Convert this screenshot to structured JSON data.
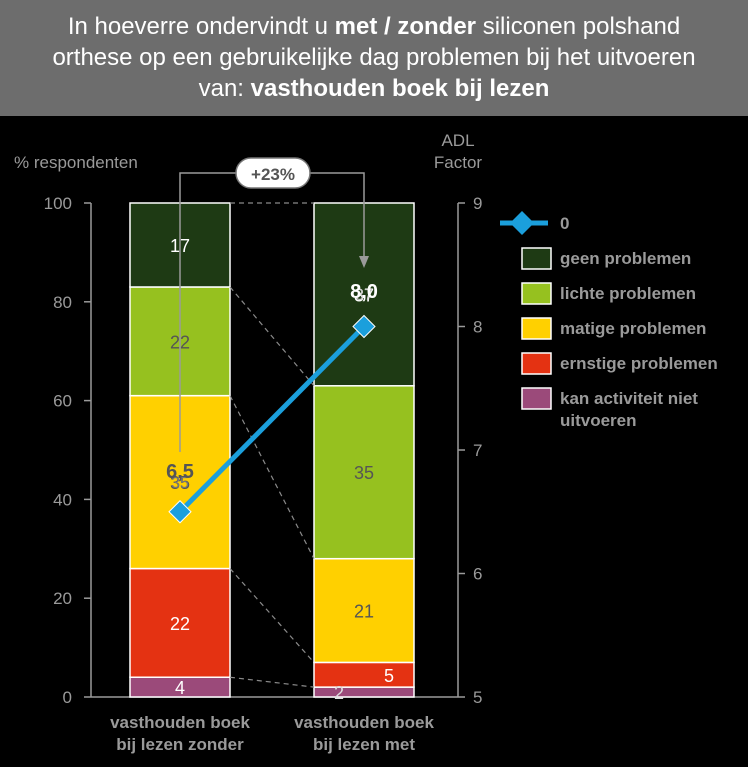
{
  "title": {
    "line1_a": "In hoeverre ondervindt u ",
    "line1_b": "met / zonder",
    "line1_c": " siliconen polshand",
    "line2": "orthese op een gebruikelijke dag problemen bij het uitvoeren",
    "line3_a": "van: ",
    "line3_b": "vasthouden boek bij lezen"
  },
  "chart_data": {
    "type": "bar",
    "stacked": true,
    "title": "In hoeverre ondervindt u met / zonder siliconen polshand orthese op een gebruikelijke dag problemen bij het uitvoeren van: vasthouden boek bij lezen",
    "ylabel": "% respondenten",
    "y2label_line1": "ADL",
    "y2label_line2": "Factor",
    "ylim": [
      0,
      100
    ],
    "y2lim": [
      5,
      9
    ],
    "yticks": [
      0,
      20,
      40,
      60,
      80,
      100
    ],
    "y2ticks": [
      5,
      6,
      7,
      8,
      9
    ],
    "categories": [
      [
        "vasthouden boek",
        "bij lezen zonder"
      ],
      [
        "vasthouden boek",
        "bij lezen met"
      ]
    ],
    "series": [
      {
        "name": "kan activiteit niet uitvoeren",
        "legend_lines": [
          "kan activiteit niet",
          "uitvoeren"
        ],
        "color": "#9b4a7a",
        "values": [
          4,
          2
        ]
      },
      {
        "name": "ernstige problemen",
        "legend_lines": [
          "ernstige problemen"
        ],
        "color": "#e43212",
        "values": [
          22,
          5
        ]
      },
      {
        "name": "matige problemen",
        "legend_lines": [
          "matige problemen"
        ],
        "color": "#ffd000",
        "values": [
          35,
          21
        ]
      },
      {
        "name": "lichte problemen",
        "legend_lines": [
          "lichte problemen"
        ],
        "color": "#96c11f",
        "values": [
          22,
          35
        ]
      },
      {
        "name": "geen problemen",
        "legend_lines": [
          "geen problemen"
        ],
        "color": "#1e3a14",
        "values": [
          17,
          37
        ]
      }
    ],
    "line_series": {
      "name": "0",
      "color": "#1b9fdc",
      "values": [
        6.5,
        8.0
      ],
      "labels": [
        "6,5",
        "8,0"
      ]
    },
    "hidden_labels": [
      "35",
      "37"
    ],
    "annotation": "+23%",
    "legend_position": "right"
  }
}
